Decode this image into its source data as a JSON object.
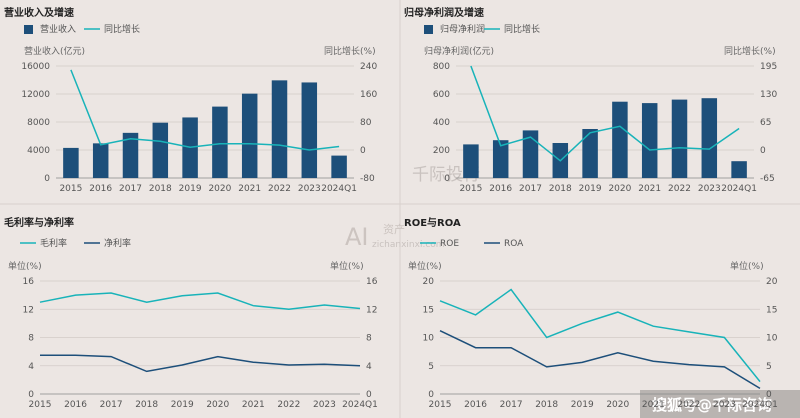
{
  "colors": {
    "bar": "#1d4f7a",
    "line": "#18b3b9",
    "line2": "#1d4f7a",
    "grid": "#d3cbc7",
    "axis": "#888"
  },
  "watermark": {
    "text": "千际投行",
    "ai": "AI",
    "sub": "资产",
    "url": "zichanxinxi.com"
  },
  "brand": "搜狐号@千际咨询",
  "chart_data": [
    {
      "type": "bar",
      "title": "营业收入及增速",
      "legend": [
        "营业收入",
        "同比增长"
      ],
      "left_unit": "营业收入(亿元)",
      "right_unit": "同比增长(%)",
      "categories": [
        "2015",
        "2016",
        "2017",
        "2018",
        "2019",
        "2020",
        "2021",
        "2022",
        "2023",
        "2024Q1"
      ],
      "left_ticks": [
        "0",
        "4000",
        "8000",
        "12000",
        "16000"
      ],
      "right_ticks": [
        "-80",
        "0",
        "80",
        "160",
        "240"
      ],
      "ylim": [
        0,
        16000
      ],
      "y2lim": [
        -80,
        240
      ],
      "series": [
        {
          "name": "营业收入",
          "kind": "bar",
          "axis": "left",
          "values": [
            4300,
            4950,
            6450,
            7900,
            8650,
            10200,
            12050,
            13950,
            13650,
            3200
          ]
        },
        {
          "name": "同比增长",
          "kind": "line",
          "axis": "right",
          "values": [
            229,
            15,
            32,
            25,
            8,
            18,
            18,
            14,
            0,
            10
          ]
        }
      ]
    },
    {
      "type": "bar",
      "title": "归母净利润及增速",
      "legend": [
        "归母净利润",
        "同比增长"
      ],
      "left_unit": "归母净利润(亿元)",
      "right_unit": "同比增长(%)",
      "categories": [
        "2015",
        "2016",
        "2017",
        "2018",
        "2019",
        "2020",
        "2021",
        "2022",
        "2023",
        "2024Q1"
      ],
      "left_ticks": [
        "0",
        "200",
        "400",
        "600",
        "800"
      ],
      "right_ticks": [
        "-65",
        "0",
        "65",
        "130",
        "195"
      ],
      "ylim": [
        0,
        800
      ],
      "y2lim": [
        -65,
        195
      ],
      "series": [
        {
          "name": "归母净利润",
          "kind": "bar",
          "axis": "left",
          "values": [
            240,
            270,
            340,
            250,
            350,
            545,
            535,
            560,
            570,
            120
          ]
        },
        {
          "name": "同比增长",
          "kind": "line",
          "axis": "right",
          "values": [
            195,
            10,
            30,
            -25,
            40,
            55,
            0,
            5,
            2,
            50
          ]
        }
      ]
    },
    {
      "type": "line",
      "title": "毛利率与净利率",
      "legend": [
        "毛利率",
        "净利率"
      ],
      "left_unit": "单位(%)",
      "right_unit": "单位(%)",
      "categories": [
        "2015",
        "2016",
        "2017",
        "2018",
        "2019",
        "2020",
        "2021",
        "2022",
        "2023",
        "2024Q1"
      ],
      "left_ticks": [
        "0",
        "4",
        "8",
        "12",
        "16"
      ],
      "right_ticks": [
        "0",
        "4",
        "8",
        "12",
        "16"
      ],
      "ylim": [
        0,
        16
      ],
      "y2lim": [
        0,
        16
      ],
      "series": [
        {
          "name": "毛利率",
          "kind": "line",
          "axis": "left",
          "values": [
            13.0,
            14.0,
            14.3,
            13.0,
            13.9,
            14.3,
            12.5,
            12.0,
            12.6,
            12.1
          ]
        },
        {
          "name": "净利率",
          "kind": "line",
          "axis": "left",
          "values": [
            5.5,
            5.5,
            5.3,
            3.2,
            4.1,
            5.3,
            4.5,
            4.1,
            4.2,
            4.0
          ]
        }
      ]
    },
    {
      "type": "line",
      "title": "ROE与ROA",
      "legend": [
        "ROE",
        "ROA"
      ],
      "left_unit": "单位(%)",
      "right_unit": "单位(%)",
      "categories": [
        "2015",
        "2016",
        "2017",
        "2018",
        "2019",
        "2020",
        "2021",
        "2022",
        "2023",
        "2024Q1"
      ],
      "left_ticks": [
        "0",
        "5",
        "10",
        "15",
        "20"
      ],
      "right_ticks": [
        "0",
        "5",
        "10",
        "15",
        "20"
      ],
      "ylim": [
        0,
        20
      ],
      "y2lim": [
        0,
        20
      ],
      "series": [
        {
          "name": "ROE",
          "kind": "line",
          "axis": "left",
          "values": [
            16.5,
            14.0,
            18.5,
            10.0,
            12.5,
            14.5,
            12.0,
            11.0,
            10.0,
            2.2
          ]
        },
        {
          "name": "ROA",
          "kind": "line",
          "axis": "left",
          "values": [
            11.2,
            8.2,
            8.2,
            4.8,
            5.6,
            7.3,
            5.8,
            5.2,
            4.8,
            1.0
          ]
        }
      ]
    }
  ]
}
